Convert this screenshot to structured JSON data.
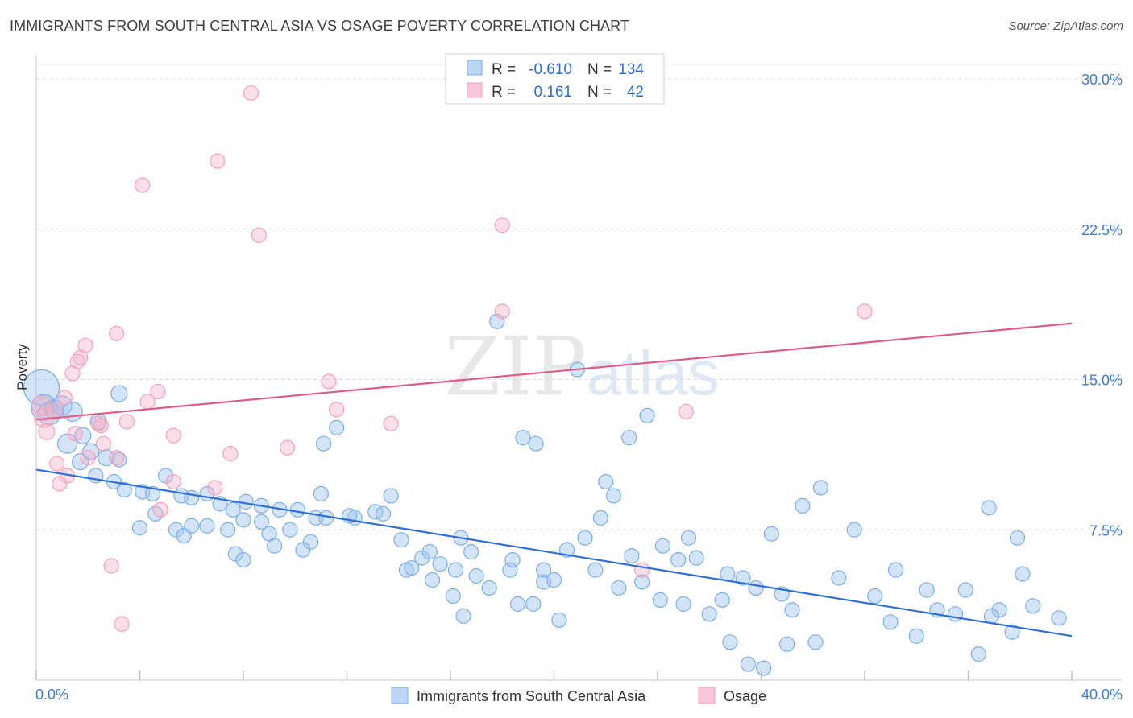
{
  "chart_data": {
    "type": "scatter",
    "title": "IMMIGRANTS FROM SOUTH CENTRAL ASIA VS OSAGE POVERTY CORRELATION CHART",
    "source": "Source: ZipAtlas.com",
    "xlabel": "",
    "ylabel": "Poverty",
    "xlim": [
      0,
      40
    ],
    "ylim": [
      0,
      30
    ],
    "x_tick_labels": [
      "0.0%",
      "40.0%"
    ],
    "y_tick_labels": [
      "7.5%",
      "15.0%",
      "22.5%",
      "30.0%"
    ],
    "y_ticks": [
      7.5,
      15,
      22.5,
      30
    ],
    "watermark": "ZIPatlas",
    "legend_stats": [
      {
        "r_label": "R =",
        "r": "-0.610",
        "n_label": "N =",
        "n": "134"
      },
      {
        "r_label": "R =",
        "r": "0.161",
        "n_label": "N =",
        "n": "42"
      }
    ],
    "series": [
      {
        "name": "Immigrants from South Central Asia",
        "color": "#7aaee8",
        "trend_color": "#2f6fd6",
        "trend": [
          [
            0,
            10.5
          ],
          [
            40,
            2.2
          ]
        ],
        "points": [
          [
            0.2,
            14.6,
            22
          ],
          [
            0.3,
            13.6,
            16
          ],
          [
            0.5,
            13.3,
            14
          ],
          [
            0.7,
            13.5,
            12
          ],
          [
            1.0,
            13.7,
            12
          ],
          [
            1.4,
            13.4,
            12
          ],
          [
            1.2,
            11.8,
            12
          ],
          [
            1.8,
            12.2,
            10
          ],
          [
            2.4,
            12.9,
            10
          ],
          [
            2.1,
            11.4,
            10
          ],
          [
            2.7,
            11.1,
            10
          ],
          [
            3.2,
            11.0,
            9
          ],
          [
            1.7,
            10.9,
            10
          ],
          [
            2.3,
            10.2,
            9
          ],
          [
            3.0,
            9.9,
            9
          ],
          [
            3.4,
            9.5,
            9
          ],
          [
            3.2,
            14.3,
            10
          ],
          [
            4.1,
            9.4,
            9
          ],
          [
            4.5,
            9.3,
            9
          ],
          [
            5.0,
            10.2,
            9
          ],
          [
            5.6,
            9.2,
            9
          ],
          [
            6.0,
            9.1,
            9
          ],
          [
            6.6,
            9.3,
            9
          ],
          [
            7.1,
            8.8,
            9
          ],
          [
            7.6,
            8.5,
            9
          ],
          [
            8.1,
            8.9,
            9
          ],
          [
            8.7,
            8.7,
            9
          ],
          [
            9.4,
            8.5,
            9
          ],
          [
            10.1,
            8.5,
            9
          ],
          [
            10.8,
            8.1,
            9
          ],
          [
            11.2,
            8.1,
            9
          ],
          [
            12.3,
            8.1,
            9
          ],
          [
            13.1,
            8.4,
            9
          ],
          [
            4.6,
            8.3,
            9
          ],
          [
            5.4,
            7.5,
            9
          ],
          [
            4.0,
            7.6,
            9
          ],
          [
            5.7,
            7.2,
            9
          ],
          [
            6.0,
            7.7,
            9
          ],
          [
            6.6,
            7.7,
            9
          ],
          [
            7.4,
            7.5,
            9
          ],
          [
            8.0,
            8.0,
            9
          ],
          [
            8.7,
            7.9,
            9
          ],
          [
            9.0,
            7.3,
            9
          ],
          [
            9.8,
            7.5,
            9
          ],
          [
            10.3,
            6.5,
            9
          ],
          [
            10.6,
            6.9,
            9
          ],
          [
            9.2,
            6.7,
            9
          ],
          [
            7.7,
            6.3,
            9
          ],
          [
            8.0,
            6.0,
            9
          ],
          [
            11.1,
            11.8,
            9
          ],
          [
            11.0,
            9.3,
            9
          ],
          [
            11.6,
            12.6,
            9
          ],
          [
            12.1,
            8.2,
            9
          ],
          [
            13.4,
            8.3,
            9
          ],
          [
            14.1,
            7.0,
            9
          ],
          [
            14.3,
            5.5,
            9
          ],
          [
            14.5,
            5.6,
            9
          ],
          [
            14.9,
            6.1,
            9
          ],
          [
            15.2,
            6.4,
            9
          ],
          [
            15.6,
            5.8,
            9
          ],
          [
            16.2,
            5.5,
            9
          ],
          [
            16.8,
            6.4,
            9
          ],
          [
            16.4,
            7.1,
            9
          ],
          [
            17.0,
            5.2,
            9
          ],
          [
            17.5,
            4.6,
            9
          ],
          [
            18.3,
            5.5,
            9
          ],
          [
            18.4,
            6.0,
            9
          ],
          [
            19.6,
            4.9,
            9
          ],
          [
            19.6,
            5.5,
            9
          ],
          [
            20.0,
            5.0,
            9
          ],
          [
            18.8,
            12.1,
            9
          ],
          [
            21.2,
            7.1,
            9
          ],
          [
            21.8,
            8.1,
            9
          ],
          [
            22.5,
            4.6,
            9
          ],
          [
            23.4,
            4.9,
            9
          ],
          [
            24.2,
            6.7,
            9
          ],
          [
            25.5,
            6.1,
            9
          ],
          [
            26.7,
            5.3,
            9
          ],
          [
            27.3,
            5.1,
            9
          ],
          [
            28.8,
            4.3,
            9
          ],
          [
            29.6,
            8.7,
            9
          ],
          [
            28.4,
            7.3,
            9
          ],
          [
            30.3,
            9.6,
            9
          ],
          [
            31.6,
            7.5,
            9
          ],
          [
            33.2,
            5.5,
            9
          ],
          [
            34.4,
            4.5,
            9
          ],
          [
            35.9,
            4.5,
            9
          ],
          [
            36.8,
            8.6,
            9
          ],
          [
            37.2,
            3.5,
            9
          ],
          [
            38.5,
            3.7,
            9
          ],
          [
            39.5,
            3.1,
            9
          ],
          [
            38.1,
            5.3,
            9
          ],
          [
            37.9,
            7.1,
            9
          ],
          [
            17.8,
            17.9,
            9
          ],
          [
            19.3,
            11.8,
            9
          ],
          [
            20.9,
            15.5,
            9
          ],
          [
            22.3,
            9.2,
            9
          ],
          [
            22.9,
            12.1,
            9
          ],
          [
            23.6,
            13.2,
            9
          ],
          [
            24.8,
            6.0,
            9
          ],
          [
            24.1,
            4.0,
            9
          ],
          [
            25.0,
            3.8,
            9
          ],
          [
            26.0,
            3.3,
            9
          ],
          [
            26.8,
            1.9,
            9
          ],
          [
            27.5,
            0.8,
            9
          ],
          [
            28.1,
            0.6,
            9
          ],
          [
            29.0,
            1.8,
            9
          ],
          [
            30.1,
            1.9,
            9
          ],
          [
            32.4,
            4.2,
            9
          ],
          [
            34.0,
            2.2,
            9
          ],
          [
            35.5,
            3.3,
            9
          ],
          [
            36.4,
            1.3,
            9
          ],
          [
            36.9,
            3.2,
            9
          ],
          [
            37.7,
            2.4,
            9
          ],
          [
            13.7,
            9.2,
            9
          ],
          [
            15.3,
            5.0,
            9
          ],
          [
            16.1,
            4.2,
            9
          ],
          [
            18.6,
            3.8,
            9
          ],
          [
            19.2,
            3.8,
            9
          ],
          [
            20.5,
            6.5,
            9
          ],
          [
            21.6,
            5.5,
            9
          ],
          [
            22.0,
            9.9,
            9
          ],
          [
            23.0,
            6.2,
            9
          ],
          [
            25.2,
            7.1,
            9
          ],
          [
            26.5,
            4.0,
            9
          ],
          [
            27.8,
            4.6,
            9
          ],
          [
            29.2,
            3.5,
            9
          ],
          [
            31.0,
            5.1,
            9
          ],
          [
            33.0,
            2.9,
            9
          ],
          [
            34.8,
            3.5,
            9
          ],
          [
            16.5,
            3.2,
            9
          ],
          [
            20.2,
            3.0,
            9
          ]
        ]
      },
      {
        "name": "Osage",
        "color": "#f4a0b8",
        "trend_color": "#e05a88",
        "trend": [
          [
            0,
            13.0
          ],
          [
            40,
            17.8
          ]
        ],
        "points": [
          [
            0.2,
            13.7,
            12
          ],
          [
            0.3,
            13.1,
            12
          ],
          [
            0.4,
            12.4,
            10
          ],
          [
            0.7,
            13.4,
            10
          ],
          [
            1.1,
            14.1,
            9
          ],
          [
            0.8,
            10.8,
            9
          ],
          [
            1.4,
            15.3,
            9
          ],
          [
            1.6,
            15.9,
            9
          ],
          [
            1.7,
            16.1,
            9
          ],
          [
            1.9,
            16.7,
            9
          ],
          [
            1.2,
            10.2,
            9
          ],
          [
            2.4,
            12.8,
            9
          ],
          [
            2.5,
            12.7,
            9
          ],
          [
            2.6,
            11.8,
            9
          ],
          [
            2.0,
            11.1,
            9
          ],
          [
            3.1,
            11.1,
            9
          ],
          [
            3.1,
            17.3,
            9
          ],
          [
            3.3,
            2.8,
            9
          ],
          [
            3.5,
            12.9,
            9
          ],
          [
            4.1,
            24.7,
            9
          ],
          [
            4.3,
            13.9,
            9
          ],
          [
            4.7,
            14.4,
            9
          ],
          [
            4.8,
            8.5,
            9
          ],
          [
            5.3,
            12.2,
            9
          ],
          [
            5.3,
            9.9,
            9
          ],
          [
            6.9,
            9.6,
            9
          ],
          [
            7.0,
            25.9,
            9
          ],
          [
            7.5,
            11.3,
            9
          ],
          [
            8.3,
            29.3,
            9
          ],
          [
            8.6,
            22.2,
            9
          ],
          [
            9.7,
            11.6,
            9
          ],
          [
            11.3,
            14.9,
            9
          ],
          [
            11.6,
            13.5,
            9
          ],
          [
            13.7,
            12.8,
            9
          ],
          [
            18.0,
            18.4,
            9
          ],
          [
            18.0,
            22.7,
            9
          ],
          [
            23.4,
            5.5,
            9
          ],
          [
            25.1,
            13.4,
            9
          ],
          [
            32.0,
            18.4,
            9
          ],
          [
            2.9,
            5.7,
            9
          ],
          [
            1.5,
            12.3,
            9
          ],
          [
            0.9,
            9.8,
            9
          ]
        ]
      }
    ]
  }
}
